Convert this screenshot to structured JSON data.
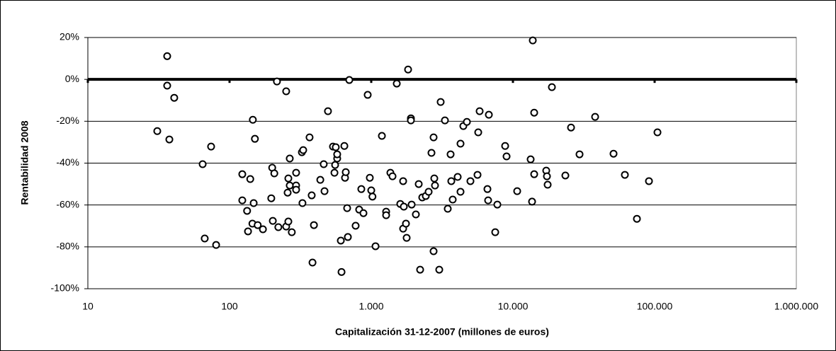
{
  "chart_data": {
    "type": "scatter",
    "x_label": "Capitalización 31-12-2007 (millones de euros)",
    "y_label": "Rentabilidad 2008",
    "x": [
      30.9,
      40.7,
      36.3,
      36.3,
      37.6,
      64.6,
      74.1,
      66.8,
      80.4,
      123,
      123,
      133,
      135,
      140,
      146,
      151,
      148,
      145,
      158,
      172,
      197,
      200,
      202,
      207,
      216,
      221,
      251,
      257,
      260,
      260,
      251,
      266,
      266,
      275,
      295,
      295,
      295,
      324,
      331,
      327,
      367,
      380,
      394,
      385,
      437,
      462,
      468,
      495,
      537,
      562,
      550,
      556,
      575,
      575,
      610,
      617,
      646,
      653,
      661,
      676,
      684,
      700,
      776,
      822,
      851,
      881,
      944,
      977,
      1000,
      1020,
      1072,
      1189,
      1274,
      1274,
      1365,
      1413,
      1514,
      1603,
      1679,
      1679,
      1698,
      1758,
      1778,
      1820,
      1905,
      1905,
      1928,
      2065,
      2163,
      2213,
      2291,
      2427,
      2541,
      2754,
      2661,
      2754,
      2786,
      2818,
      3090,
      3020,
      3311,
      3467,
      3631,
      3673,
      3758,
      4074,
      4266,
      4266,
      4467,
      4732,
      5012,
      5623,
      5689,
      5821,
      6607,
      6683,
      6761,
      7499,
      7762,
      8810,
      9016,
      10715,
      13335,
      13646,
      13804,
      14125,
      14125,
      17179,
      17378,
      17579,
      18836,
      23442,
      25704,
      29512,
      38019,
      51286,
      61660,
      74989,
      91201,
      104713
    ],
    "values": [
      -24.7,
      -8.8,
      11.1,
      -3.0,
      -28.7,
      -40.5,
      -32.1,
      -76.0,
      -79.1,
      -45.3,
      -57.8,
      -62.8,
      -72.6,
      -47.6,
      -19.3,
      -28.4,
      -59.1,
      -68.9,
      -69.6,
      -71.6,
      -56.8,
      -42.2,
      -67.6,
      -44.9,
      -1.0,
      -70.6,
      -70.3,
      -54.1,
      -47.3,
      -67.9,
      -5.7,
      -37.8,
      -50.7,
      -73.0,
      -44.6,
      -50.7,
      -52.7,
      -34.8,
      -33.8,
      -59.1,
      -27.7,
      -55.4,
      -69.6,
      -87.5,
      -48.0,
      -40.5,
      -53.4,
      -15.2,
      -32.1,
      -32.4,
      -44.6,
      -40.9,
      -37.8,
      -35.8,
      -77.0,
      -92.0,
      -31.8,
      -47.0,
      -44.3,
      -61.5,
      -75.3,
      -0.3,
      -69.9,
      -62.2,
      -52.4,
      -63.9,
      -7.4,
      -47.0,
      -53.0,
      -56.0,
      -79.7,
      -27.0,
      -63.2,
      -64.9,
      -44.6,
      -46.3,
      -2.0,
      -59.5,
      -48.6,
      -71.3,
      -60.8,
      -68.9,
      -75.7,
      4.7,
      -18.6,
      -19.6,
      -59.8,
      -64.5,
      -50.0,
      -90.9,
      -56.4,
      -55.7,
      -53.7,
      -82.1,
      -35.1,
      -27.7,
      -47.3,
      -50.7,
      -10.8,
      -90.9,
      -19.6,
      -61.8,
      -35.8,
      -48.6,
      -57.4,
      -46.6,
      -30.7,
      -53.7,
      -22.3,
      -20.3,
      -48.6,
      -45.6,
      -25.3,
      -15.2,
      -52.4,
      -57.8,
      -16.9,
      -73.0,
      -59.8,
      -31.8,
      -36.8,
      -53.4,
      -38.2,
      -58.4,
      18.6,
      -15.9,
      -45.3,
      -43.6,
      -46.3,
      -50.3,
      -3.7,
      -45.9,
      -23.0,
      -35.8,
      -17.9,
      -35.5,
      -45.6,
      -66.6,
      -48.6,
      -25.3
    ],
    "marker_color": "#000000",
    "log_x": true,
    "grid": true,
    "x_axis_at": 0,
    "xlim": [
      10,
      1000000
    ],
    "xticks": [
      10,
      100,
      {
        "value": 1000,
        "label": "1.000"
      },
      {
        "value": 10000,
        "label": "10.000"
      },
      {
        "value": 100000,
        "label": "100.000"
      },
      {
        "value": 1000000,
        "label": "1.000.000"
      }
    ],
    "ylim": [
      -100,
      20
    ],
    "yticks": [
      {
        "value": 20,
        "label": "20%"
      },
      {
        "value": 0,
        "label": "0%"
      },
      {
        "value": -20,
        "label": "-20%"
      },
      {
        "value": -40,
        "label": "-40%"
      },
      {
        "value": -60,
        "label": "-60%"
      },
      {
        "value": -80,
        "label": "-80%"
      },
      {
        "value": -100,
        "label": "-100%"
      }
    ]
  }
}
